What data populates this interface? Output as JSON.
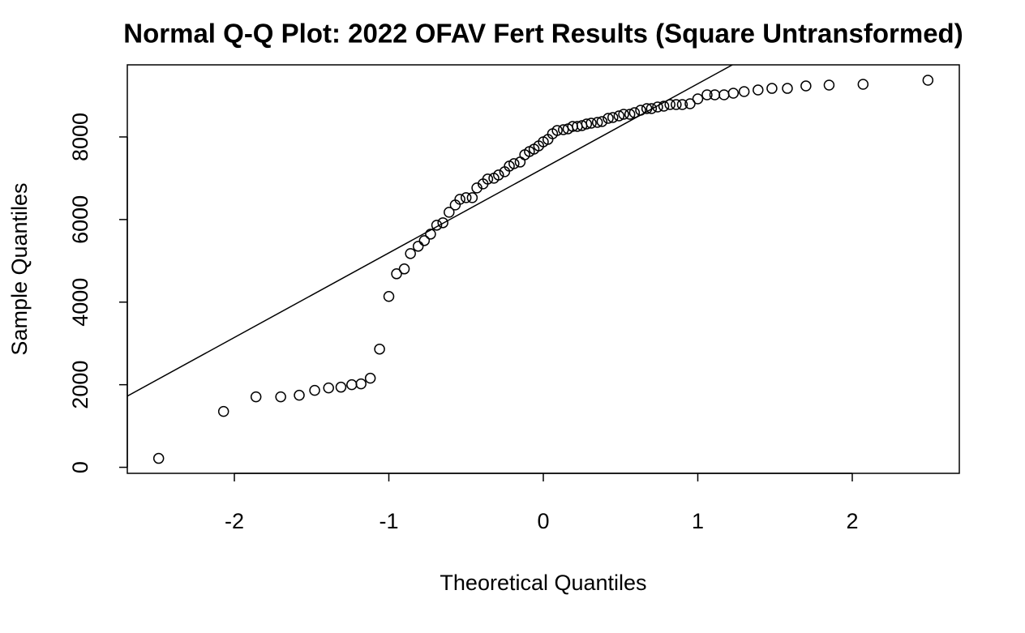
{
  "chart_data": {
    "type": "scatter",
    "title": "Normal Q-Q Plot: 2022 OFAV Fert Results (Square Untransformed)",
    "x_label": "Theoretical Quantiles",
    "y_label": "Sample Quantiles",
    "x": [
      -2.49,
      -2.07,
      -1.86,
      -1.7,
      -1.58,
      -1.48,
      -1.39,
      -1.31,
      -1.24,
      -1.18,
      -1.12,
      -1.06,
      -1.0,
      -0.95,
      -0.9,
      -0.86,
      -0.81,
      -0.77,
      -0.73,
      -0.69,
      -0.65,
      -0.61,
      -0.57,
      -0.54,
      -0.5,
      -0.46,
      -0.43,
      -0.39,
      -0.36,
      -0.32,
      -0.29,
      -0.25,
      -0.22,
      -0.19,
      -0.15,
      -0.12,
      -0.09,
      -0.06,
      -0.03,
      0,
      0.03,
      0.06,
      0.09,
      0.13,
      0.16,
      0.19,
      0.22,
      0.25,
      0.28,
      0.31,
      0.35,
      0.38,
      0.42,
      0.45,
      0.49,
      0.52,
      0.56,
      0.59,
      0.63,
      0.67,
      0.7,
      0.74,
      0.78,
      0.82,
      0.86,
      0.9,
      0.95,
      1.0,
      1.06,
      1.11,
      1.17,
      1.23,
      1.3,
      1.39,
      1.48,
      1.58,
      1.7,
      1.85,
      2.07,
      2.49
    ],
    "values": [
      216,
      1353,
      1706,
      1706,
      1745,
      1863,
      1922,
      1941,
      2000,
      2020,
      2157,
      2863,
      4137,
      4686,
      4804,
      5176,
      5353,
      5490,
      5647,
      5863,
      5922,
      6176,
      6353,
      6490,
      6529,
      6529,
      6765,
      6863,
      6980,
      7000,
      7078,
      7157,
      7294,
      7353,
      7392,
      7569,
      7647,
      7706,
      7784,
      7882,
      7941,
      8078,
      8157,
      8176,
      8196,
      8255,
      8255,
      8275,
      8314,
      8333,
      8353,
      8373,
      8451,
      8471,
      8510,
      8549,
      8549,
      8588,
      8647,
      8686,
      8686,
      8725,
      8745,
      8784,
      8784,
      8784,
      8804,
      8922,
      9020,
      9020,
      9020,
      9059,
      9098,
      9137,
      9176,
      9176,
      9235,
      9255,
      9275,
      9373
    ],
    "qqline": {
      "intercept": 7240,
      "slope": 2048
    },
    "xlim": [
      -2.693,
      2.693
    ],
    "ylim": [
      -146,
      9746
    ],
    "xticks": [
      -2,
      -1,
      0,
      1,
      2
    ],
    "yticks": [
      0,
      2000,
      4000,
      6000,
      8000
    ],
    "color": "#000000"
  }
}
